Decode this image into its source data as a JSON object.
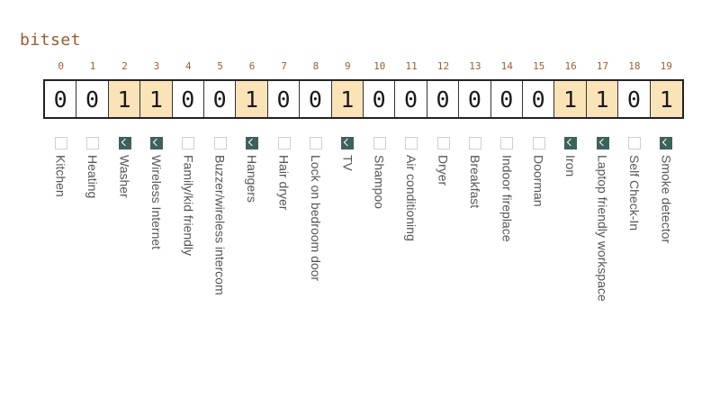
{
  "title": "bitset",
  "bits": [
    {
      "index": "0",
      "value": "0",
      "set": false,
      "label": "Kitchen"
    },
    {
      "index": "1",
      "value": "0",
      "set": false,
      "label": "Heating"
    },
    {
      "index": "2",
      "value": "1",
      "set": true,
      "label": "Washer"
    },
    {
      "index": "3",
      "value": "1",
      "set": true,
      "label": "Wireless Internet"
    },
    {
      "index": "4",
      "value": "0",
      "set": false,
      "label": "Family/kid friendly"
    },
    {
      "index": "5",
      "value": "0",
      "set": false,
      "label": "Buzzer/wireless intercom"
    },
    {
      "index": "6",
      "value": "1",
      "set": true,
      "label": "Hangers"
    },
    {
      "index": "7",
      "value": "0",
      "set": false,
      "label": "Hair dryer"
    },
    {
      "index": "8",
      "value": "0",
      "set": false,
      "label": "Lock on bedroom door"
    },
    {
      "index": "9",
      "value": "1",
      "set": true,
      "label": "TV"
    },
    {
      "index": "10",
      "value": "0",
      "set": false,
      "label": "Shampoo"
    },
    {
      "index": "11",
      "value": "0",
      "set": false,
      "label": "Air conditioning"
    },
    {
      "index": "12",
      "value": "0",
      "set": false,
      "label": "Dryer"
    },
    {
      "index": "13",
      "value": "0",
      "set": false,
      "label": "Breakfast"
    },
    {
      "index": "14",
      "value": "0",
      "set": false,
      "label": "Indoor fireplace"
    },
    {
      "index": "15",
      "value": "0",
      "set": false,
      "label": "Doorman"
    },
    {
      "index": "16",
      "value": "1",
      "set": true,
      "label": "Iron"
    },
    {
      "index": "17",
      "value": "1",
      "set": true,
      "label": "Laptop friendly workspace"
    },
    {
      "index": "18",
      "value": "0",
      "set": false,
      "label": "Self Check-In"
    },
    {
      "index": "19",
      "value": "1",
      "set": true,
      "label": "Smoke detector"
    }
  ],
  "colors": {
    "set_cell": "#fbe3b8",
    "checkbox_on": "#3f615b",
    "index_text": "#a25d2e"
  }
}
